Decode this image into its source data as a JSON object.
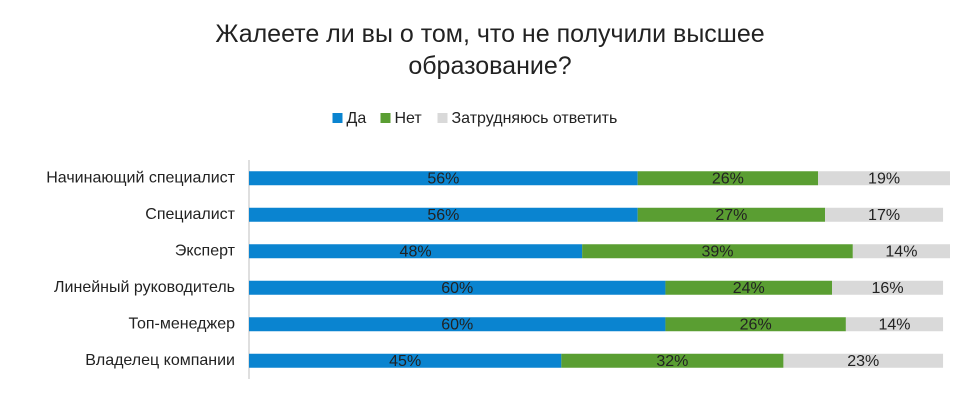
{
  "chart_data": {
    "type": "stacked-bar-horizontal",
    "title": "Жалеете ли вы о том, что не получили высшее образование?",
    "categories": [
      "Начинающий специалист",
      "Специалист",
      "Эксперт",
      "Линейный руководитель",
      "Топ-менеджер",
      "Владелец компании"
    ],
    "series": [
      {
        "name": "Да",
        "color": "#0a84d0",
        "values": [
          56,
          56,
          48,
          60,
          60,
          45
        ],
        "value_labels": [
          "56%",
          "56%",
          "48%",
          "60%",
          "60%",
          "45%"
        ]
      },
      {
        "name": "Нет",
        "color": "#5a9e32",
        "values": [
          26,
          27,
          39,
          24,
          26,
          32
        ],
        "value_labels": [
          "26%",
          "27%",
          "39%",
          "24%",
          "26%",
          "32%"
        ]
      },
      {
        "name": "Затрудняюсь ответить",
        "color": "#d9d9d9",
        "values": [
          19,
          17,
          14,
          16,
          14,
          23
        ],
        "value_labels": [
          "19%",
          "17%",
          "14%",
          "16%",
          "14%",
          "23%"
        ]
      }
    ],
    "xlim": [
      0,
      101
    ],
    "legend": "top"
  }
}
